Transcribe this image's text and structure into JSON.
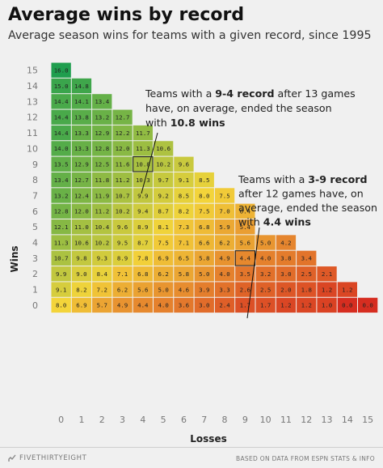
{
  "header": {
    "title": "Average wins by record",
    "subtitle": "Average season wins for teams with a given record, since 1995"
  },
  "footer": {
    "brand": "FIVETHIRTYEIGHT",
    "source": "BASED ON DATA FROM ESPN STATS & INFO"
  },
  "annotations": [
    {
      "id": "a1",
      "lines": [
        [
          {
            "t": "Teams with a ",
            "b": false
          },
          {
            "t": "9-4 record",
            "b": true
          },
          {
            "t": " after 13 games",
            "b": false
          }
        ],
        [
          {
            "t": "have, on average, ended the season",
            "b": false
          }
        ],
        [
          {
            "t": "with ",
            "b": false
          },
          {
            "t": "10.8 wins",
            "b": true
          }
        ]
      ],
      "wins": 9,
      "losses": 4
    },
    {
      "id": "a2",
      "lines": [
        [
          {
            "t": "Teams with a ",
            "b": false
          },
          {
            "t": "3-9 record",
            "b": true
          }
        ],
        [
          {
            "t": "after 12 games have, on",
            "b": false
          }
        ],
        [
          {
            "t": "average, ended the season",
            "b": false
          }
        ],
        [
          {
            "t": "with ",
            "b": false
          },
          {
            "t": "4.4 wins",
            "b": true
          }
        ]
      ],
      "wins": 3,
      "losses": 9
    }
  ],
  "chart_data": {
    "type": "heatmap",
    "xlabel": "Losses",
    "ylabel": "Wins",
    "x_ticks": [
      0,
      1,
      2,
      3,
      4,
      5,
      6,
      7,
      8,
      9,
      10,
      11,
      12,
      13,
      14,
      15
    ],
    "y_ticks": [
      0,
      1,
      2,
      3,
      4,
      5,
      6,
      7,
      8,
      9,
      10,
      11,
      12,
      13,
      14,
      15
    ],
    "color_scale": {
      "low": "#d62d20",
      "mid": "#f3d43a",
      "high": "#1f9e4e",
      "min": 0,
      "mid_value": 8,
      "max": 16
    },
    "rows": [
      {
        "wins": 15,
        "values": [
          16.0
        ]
      },
      {
        "wins": 14,
        "values": [
          15.0,
          14.8
        ]
      },
      {
        "wins": 13,
        "values": [
          14.4,
          14.1,
          13.4
        ]
      },
      {
        "wins": 12,
        "values": [
          14.4,
          13.8,
          13.2,
          12.7
        ]
      },
      {
        "wins": 11,
        "values": [
          14.4,
          13.3,
          12.9,
          12.2,
          11.7
        ]
      },
      {
        "wins": 10,
        "values": [
          14.0,
          13.3,
          12.8,
          12.0,
          11.3,
          10.6
        ]
      },
      {
        "wins": 9,
        "values": [
          13.5,
          12.9,
          12.5,
          11.6,
          10.8,
          10.2,
          9.6
        ]
      },
      {
        "wins": 8,
        "values": [
          13.4,
          12.7,
          11.8,
          11.2,
          10.3,
          9.7,
          9.1,
          8.5
        ]
      },
      {
        "wins": 7,
        "values": [
          13.2,
          12.4,
          11.9,
          10.7,
          9.9,
          9.2,
          8.5,
          8.0,
          7.5
        ]
      },
      {
        "wins": 6,
        "values": [
          12.8,
          12.0,
          11.2,
          10.2,
          9.4,
          8.7,
          8.2,
          7.5,
          7.0,
          6.4
        ]
      },
      {
        "wins": 5,
        "values": [
          12.1,
          11.0,
          10.4,
          9.6,
          8.9,
          8.1,
          7.3,
          6.8,
          5.9,
          5.4
        ]
      },
      {
        "wins": 4,
        "values": [
          11.3,
          10.6,
          10.2,
          9.5,
          8.7,
          7.5,
          7.1,
          6.6,
          6.2,
          5.6,
          5.0,
          4.2
        ]
      },
      {
        "wins": 3,
        "values": [
          10.7,
          9.8,
          9.3,
          8.9,
          7.8,
          6.9,
          6.5,
          5.8,
          4.9,
          4.4,
          4.0,
          3.8,
          3.4
        ]
      },
      {
        "wins": 2,
        "values": [
          9.9,
          9.0,
          8.4,
          7.1,
          6.8,
          6.2,
          5.8,
          5.0,
          4.0,
          3.5,
          3.2,
          3.0,
          2.5,
          2.1
        ]
      },
      {
        "wins": 1,
        "values": [
          9.1,
          8.2,
          7.2,
          6.2,
          5.6,
          5.0,
          4.6,
          3.9,
          3.3,
          2.6,
          2.5,
          2.0,
          1.8,
          1.2,
          1.2
        ]
      },
      {
        "wins": 0,
        "values": [
          8.0,
          6.9,
          5.7,
          4.9,
          4.4,
          4.0,
          3.6,
          3.0,
          2.4,
          1.7,
          1.7,
          1.2,
          1.2,
          1.0,
          0.0,
          0.0
        ]
      }
    ]
  }
}
